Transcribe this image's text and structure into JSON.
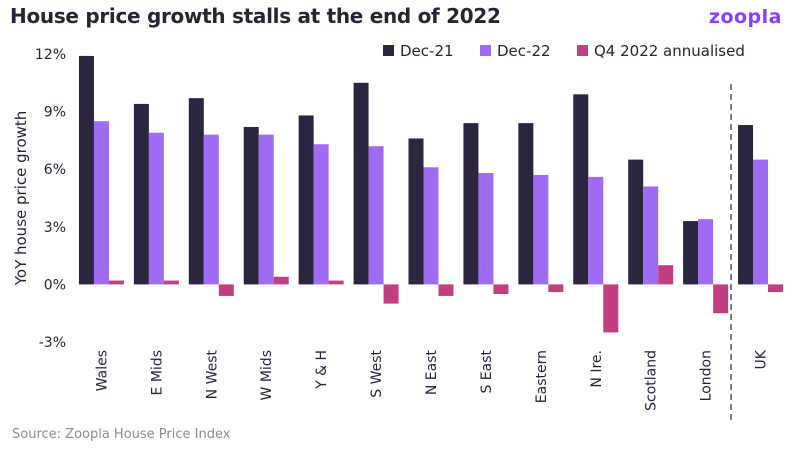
{
  "header": {
    "title": "House price growth stalls at the end of 2022",
    "logo": "zoopla"
  },
  "footer": {
    "source": "Source: Zoopla House Price Index"
  },
  "colors": {
    "dec21": "#2c2540",
    "dec22": "#9f6bf2",
    "q4": "#c23e80",
    "axis": "#555555",
    "divider": "#555555"
  },
  "chart_data": {
    "type": "bar",
    "ylabel": "YoY house price growth",
    "ylim": [
      -3,
      12
    ],
    "yticks": [
      12,
      9,
      6,
      3,
      0,
      -3
    ],
    "ytick_labels": [
      "12%",
      "9%",
      "6%",
      "3%",
      "0%",
      "-3%"
    ],
    "legend_position": "top-right",
    "categories": [
      "Wales",
      "E Mids",
      "N West",
      "W Mids",
      "Y & H",
      "S West",
      "N East",
      "S East",
      "Eastern",
      "N Ire.",
      "Scotland",
      "London",
      "UK"
    ],
    "series": [
      {
        "name": "Dec-21",
        "values": [
          11.9,
          9.4,
          9.7,
          8.2,
          8.8,
          10.5,
          7.6,
          8.4,
          8.4,
          9.9,
          6.5,
          3.3,
          8.3
        ]
      },
      {
        "name": "Dec-22",
        "values": [
          8.5,
          7.9,
          7.8,
          7.8,
          7.3,
          7.2,
          6.1,
          5.8,
          5.7,
          5.6,
          5.1,
          3.4,
          6.5
        ]
      },
      {
        "name": "Q4 2022 annualised",
        "values": [
          0.2,
          0.2,
          -0.6,
          0.4,
          0.2,
          -1.0,
          -0.6,
          -0.5,
          -0.4,
          -2.5,
          1.0,
          -1.5,
          -0.4
        ]
      }
    ],
    "divider_before": "UK"
  }
}
